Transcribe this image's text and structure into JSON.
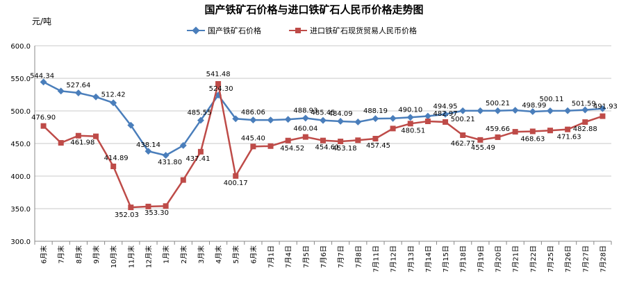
{
  "chart_data": {
    "type": "line",
    "title": "国产铁矿石价格与进口铁矿石人民币价格走势图",
    "ylabel": "元/吨",
    "xlabel": "",
    "ylim": [
      300,
      600
    ],
    "yticks": [
      "300.0",
      "350.0",
      "400.0",
      "450.0",
      "500.0",
      "550.0",
      "600.0"
    ],
    "grid": true,
    "legend_position": "top",
    "categories": [
      "6月末",
      "7月末",
      "8月末",
      "9月末",
      "10月末",
      "11月末",
      "12月末",
      "1月末",
      "2月末",
      "3月末",
      "4月末",
      "5月末",
      "6月末",
      "7月1日",
      "7月4日",
      "7月5日",
      "7月6日",
      "7月7日",
      "7月8日",
      "7月11日",
      "7月12日",
      "7月13日",
      "7月14日",
      "7月15日",
      "7月18日",
      "7月19日",
      "7月20日",
      "7月21日",
      "7月22日",
      "7月25日",
      "7月26日",
      "7月27日",
      "7月28日"
    ],
    "series": [
      {
        "name": "国产铁矿石价格",
        "color": "#4a7ebb",
        "marker": "diamond",
        "values": [
          544.34,
          530.5,
          527.64,
          521.5,
          512.42,
          478.0,
          438.14,
          431.8,
          447.0,
          485.55,
          524.3,
          488.0,
          486.06,
          486.0,
          487.0,
          488.93,
          485.45,
          484.09,
          483.0,
          488.19,
          488.5,
          490.1,
          492.0,
          494.95,
          500.21,
          500.21,
          500.21,
          501.0,
          498.99,
          500.11,
          500.3,
          501.59,
          503.5
        ],
        "labels": [
          "544.34",
          "",
          "527.64",
          "",
          "512.42",
          "",
          "438.14",
          "431.80",
          "",
          "485.55",
          "524.30",
          "",
          "486.06",
          "",
          "",
          "488.93",
          "485.45",
          "484.09",
          "",
          "488.19",
          "",
          "490.10",
          "",
          "494.95",
          "500.21",
          "",
          "500.21",
          "",
          "498.99",
          "500.11",
          "",
          "501.59",
          ""
        ]
      },
      {
        "name": "进口铁矿石现货贸易人民币价格",
        "color": "#be4b48",
        "marker": "square",
        "values": [
          476.9,
          451.0,
          461.98,
          461.0,
          414.89,
          352.03,
          353.3,
          354.0,
          394.0,
          437.41,
          541.48,
          400.17,
          445.4,
          446.0,
          454.52,
          460.04,
          454.61,
          453.18,
          455.0,
          457.45,
          473.0,
          480.51,
          484.0,
          482.97,
          462.77,
          455.49,
          459.66,
          468.0,
          468.63,
          470.0,
          471.63,
          482.88,
          491.93
        ],
        "labels": [
          "476.90",
          "",
          "461.98",
          "",
          "414.89",
          "352.03",
          "353.30",
          "",
          "",
          "437.41",
          "541.48",
          "400.17",
          "445.40",
          "",
          "454.52",
          "460.04",
          "454.61",
          "453.18",
          "",
          "457.45",
          "",
          "480.51",
          "",
          "482.97",
          "462.77",
          "455.49",
          "459.66",
          "",
          "468.63",
          "",
          "471.63",
          "482.88",
          "491.93"
        ]
      }
    ]
  }
}
